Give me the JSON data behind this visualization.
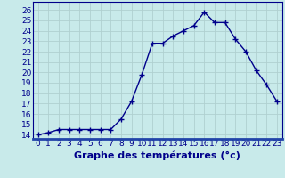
{
  "x": [
    0,
    1,
    2,
    3,
    4,
    5,
    6,
    7,
    8,
    9,
    10,
    11,
    12,
    13,
    14,
    15,
    16,
    17,
    18,
    19,
    20,
    21,
    22,
    23
  ],
  "y": [
    14.0,
    14.2,
    14.5,
    14.5,
    14.5,
    14.5,
    14.5,
    14.5,
    15.5,
    17.2,
    19.8,
    22.8,
    22.8,
    23.5,
    24.0,
    24.5,
    25.8,
    24.8,
    24.8,
    23.2,
    22.0,
    20.2,
    18.8,
    17.2
  ],
  "line_color": "#00008b",
  "marker": "+",
  "marker_size": 4,
  "marker_linewidth": 1.0,
  "bg_color": "#c8eaea",
  "xlabel": "Graphe des températures (°c)",
  "xlabel_fontsize": 8,
  "xlabel_fontweight": "bold",
  "ylabel_ticks": [
    14,
    15,
    16,
    17,
    18,
    19,
    20,
    21,
    22,
    23,
    24,
    25,
    26
  ],
  "ylim": [
    13.6,
    26.8
  ],
  "xlim": [
    -0.5,
    23.5
  ],
  "grid_color": "#b0d0d0",
  "tick_label_color": "#00008b",
  "tick_label_fontsize": 6.5,
  "line_width": 1.0,
  "spine_color": "#00008b",
  "bottom_bar_color": "#2244aa"
}
